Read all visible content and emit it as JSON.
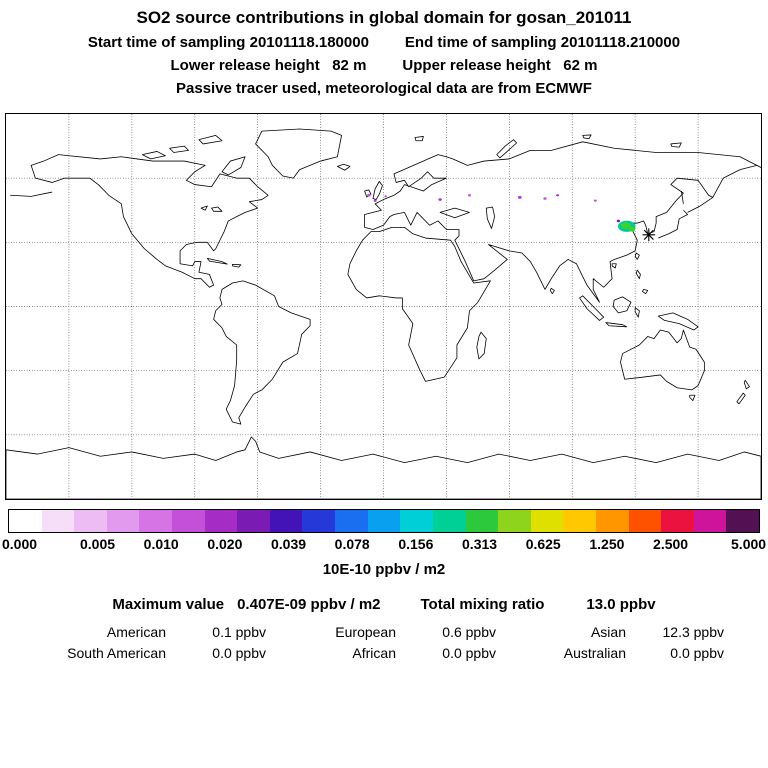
{
  "header": {
    "title": "SO2 source contributions in global domain for gosan_201011",
    "line2_left": "Start time of sampling 20101118.180000",
    "line2_right": "End time of sampling 20101118.210000",
    "line3_left": "Lower release height   82 m",
    "line3_right": "Upper release height   62 m",
    "line4": "Passive tracer used, meteorological data are from ECMWF"
  },
  "colorbar": {
    "ticks": [
      "0.000",
      "0.005",
      "0.010",
      "0.020",
      "0.039",
      "0.078",
      "0.156",
      "0.313",
      "0.625",
      "1.250",
      "2.500",
      "5.000"
    ],
    "colors": [
      "#ffffff",
      "#f6def9",
      "#edbcf4",
      "#e29aee",
      "#d674e5",
      "#c44fd8",
      "#a52cc4",
      "#7a1bb4",
      "#4413b8",
      "#2439d8",
      "#1a6ef0",
      "#0aa0f0",
      "#00cfd8",
      "#00cf96",
      "#2cc93c",
      "#8ed41c",
      "#e0e000",
      "#ffc800",
      "#ff9600",
      "#ff5200",
      "#ec1240",
      "#cf149c",
      "#531053"
    ],
    "units_label": "10E-10 ppbv / m2"
  },
  "stats": {
    "max_label": "Maximum value",
    "max_value": "0.407E-09 ppbv / m2",
    "total_label": "Total mixing ratio",
    "total_value": "13.0 ppbv"
  },
  "regions": {
    "row1": [
      {
        "label": "American",
        "value": "0.1 ppbv"
      },
      {
        "label": "European",
        "value": "0.6 ppbv"
      },
      {
        "label": "Asian",
        "value": "12.3 ppbv"
      }
    ],
    "row2": [
      {
        "label": "South American",
        "value": "0.0 ppbv"
      },
      {
        "label": "African",
        "value": "0.0 ppbv"
      },
      {
        "label": "Australian",
        "value": "0.0 ppbv"
      }
    ]
  },
  "chart_data": {
    "type": "heatmap",
    "title": "SO2 source contributions in global domain for gosan_201011",
    "projection": "equirectangular world map, lon -180..180, lat -90..90, dotted 30-degree grid",
    "sampling_start": "20101118.180000",
    "sampling_end": "20101118.210000",
    "lower_release_height_m": 82,
    "upper_release_height_m": 62,
    "tracer_note": "Passive tracer used, meteorological data are from ECMWF",
    "colorbar_ticks": [
      0.0,
      0.005,
      0.01,
      0.02,
      0.039,
      0.078,
      0.156,
      0.313,
      0.625,
      1.25,
      2.5,
      5.0
    ],
    "units": "10E-10 ppbv / m2",
    "max_value_ppbv_m2": "0.407E-09",
    "total_mixing_ratio_ppbv": 13.0,
    "region_contributions_ppbv": {
      "American": 0.1,
      "European": 0.6,
      "Asian": 12.3,
      "South American": 0.0,
      "African": 0.0,
      "Australian": 0.0
    },
    "station": {
      "label": "gosan",
      "lon": 126.5,
      "lat": 33.5
    },
    "hotspots": [
      {
        "lon": 116.0,
        "lat": 37.5,
        "rx": 4.2,
        "ry": 2.6,
        "color": "#00c9a0"
      },
      {
        "lon": 115.5,
        "lat": 37.8,
        "rx": 2.4,
        "ry": 1.5,
        "color": "#3bd42b"
      },
      {
        "lon": 118.5,
        "lat": 36.2,
        "rx": 1.6,
        "ry": 1.2,
        "color": "#3bd42b"
      },
      {
        "lon": -7.0,
        "lat": 52.0,
        "rx": 0.8,
        "ry": 0.7,
        "color": "#c44fd8"
      },
      {
        "lon": -4.0,
        "lat": 49.5,
        "rx": 0.7,
        "ry": 0.6,
        "color": "#b03fd0"
      },
      {
        "lon": 1.0,
        "lat": 51.5,
        "rx": 0.6,
        "ry": 0.5,
        "color": "#c44fd8"
      },
      {
        "lon": 27.0,
        "lat": 50.0,
        "rx": 0.8,
        "ry": 0.6,
        "color": "#a52cc4"
      },
      {
        "lon": 41.0,
        "lat": 52.0,
        "rx": 0.7,
        "ry": 0.6,
        "color": "#c44fd8"
      },
      {
        "lon": 65.0,
        "lat": 51.0,
        "rx": 0.9,
        "ry": 0.7,
        "color": "#b03fd0"
      },
      {
        "lon": 77.0,
        "lat": 50.5,
        "rx": 0.8,
        "ry": 0.6,
        "color": "#c44fd8"
      },
      {
        "lon": 83.0,
        "lat": 52.0,
        "rx": 0.7,
        "ry": 0.5,
        "color": "#a52cc4"
      },
      {
        "lon": 101.0,
        "lat": 49.5,
        "rx": 0.7,
        "ry": 0.5,
        "color": "#c44fd8"
      },
      {
        "lon": 112.0,
        "lat": 40.0,
        "rx": 0.8,
        "ry": 0.6,
        "color": "#7a1bb4"
      }
    ]
  }
}
